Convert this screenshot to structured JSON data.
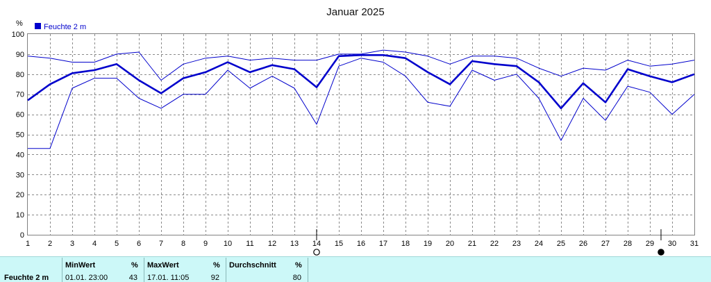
{
  "chart_data": {
    "type": "line",
    "title": "Januar 2025",
    "ylabel": "%",
    "ylim": [
      0,
      100
    ],
    "yticks": [
      0,
      10,
      20,
      30,
      40,
      50,
      60,
      70,
      80,
      90,
      100
    ],
    "x": [
      1,
      2,
      3,
      4,
      5,
      6,
      7,
      8,
      9,
      10,
      11,
      12,
      13,
      14,
      15,
      16,
      17,
      18,
      19,
      20,
      21,
      22,
      23,
      24,
      25,
      26,
      27,
      28,
      29,
      30,
      31
    ],
    "xlim": [
      1,
      31
    ],
    "grid": true,
    "legend": "top-left",
    "series": [
      {
        "name": "Feuchte 2 m",
        "role": "average",
        "values": [
          67,
          75,
          80.5,
          82,
          85,
          77,
          70.5,
          78,
          81,
          86,
          81,
          84.5,
          82.5,
          73.5,
          89,
          89.5,
          89.5,
          88,
          81,
          75,
          86.5,
          85,
          84,
          76,
          63,
          75.5,
          66,
          82.5,
          79,
          76,
          80
        ]
      },
      {
        "role": "max",
        "values": [
          89,
          88,
          86,
          86,
          90,
          91,
          77,
          85,
          88,
          89,
          87,
          88,
          87,
          87,
          90,
          90,
          92,
          91,
          89,
          85,
          89,
          89,
          88,
          83,
          79,
          83,
          82,
          87,
          84,
          85,
          87
        ]
      },
      {
        "role": "min",
        "values": [
          43,
          43,
          73,
          78,
          78,
          68,
          63,
          70,
          70,
          82,
          73,
          79,
          73,
          55,
          84,
          88,
          86,
          79,
          66,
          64,
          82,
          77,
          80,
          68,
          47,
          68,
          57,
          74,
          71,
          60,
          70
        ]
      }
    ],
    "moon_markers": [
      {
        "day": 14,
        "symbol": "full-moon-icon"
      },
      {
        "day": 29.5,
        "symbol": "new-moon-icon"
      }
    ],
    "colors": {
      "series": "#0000cc",
      "grid": "#8a8a8a",
      "stats_bg": "#ccf8f8"
    }
  },
  "stats": {
    "row_label": "Feuchte  2 m",
    "min": {
      "header": "MinWert",
      "unit": "%",
      "when": "01.01.  23:00",
      "value": "43"
    },
    "max": {
      "header": "MaxWert",
      "unit": "%",
      "when": "17.01.  11:05",
      "value": "92"
    },
    "avg": {
      "header": "Durchschnitt",
      "unit": "%",
      "value": "80"
    }
  }
}
